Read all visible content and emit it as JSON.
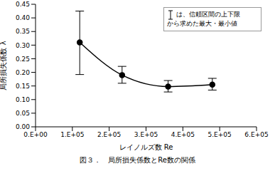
{
  "chart_data": {
    "type": "line",
    "title": "図３．　局所損失係数とRe数の関係",
    "x_label": "レイノルズ数 Re",
    "y_label": "局所損失係数 λ",
    "annotation": [
      "は、信頼区間の上下限",
      "から求めた最大・最小値"
    ],
    "x": [
      120000,
      235000,
      360000,
      480000
    ],
    "values": [
      0.31,
      0.19,
      0.148,
      0.155
    ],
    "y_min": [
      0.192,
      0.16,
      0.128,
      0.135
    ],
    "y_max": [
      0.425,
      0.222,
      0.17,
      0.178
    ],
    "xlim": [
      0,
      600000
    ],
    "xticks": [
      {
        "value": 0,
        "label": "0.E+00"
      },
      {
        "value": 100000,
        "label": "1.E+05"
      },
      {
        "value": 200000,
        "label": "2.E+05"
      },
      {
        "value": 300000,
        "label": "3.E+05"
      },
      {
        "value": 400000,
        "label": "4.E+05"
      },
      {
        "value": 500000,
        "label": "5.E+05"
      },
      {
        "value": 600000,
        "label": "6.E+05"
      }
    ],
    "ylim": [
      0,
      0.45
    ],
    "yticks": [
      {
        "value": 0,
        "label": "0.00"
      },
      0.05,
      {
        "value": 0.1,
        "label": "0.10"
      },
      0.15,
      {
        "value": 0.2,
        "label": "0.20"
      },
      0.25,
      {
        "value": 0.3,
        "label": "0.30"
      },
      0.35,
      {
        "value": 0.4,
        "label": "0.40"
      },
      0.45
    ],
    "color": "#000000",
    "marker": "circle",
    "line_style": "smooth",
    "grid": false
  }
}
